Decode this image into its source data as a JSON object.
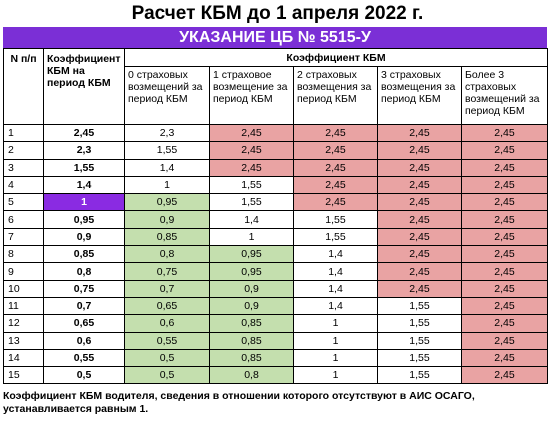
{
  "title": "Расчет КБМ до 1 апреля 2022 г.",
  "banner": "УКАЗАНИЕ ЦБ № 5515-У",
  "headers": {
    "num": "N п/п",
    "coef": "Коэффициент КБМ на период КБМ",
    "group": "Коэффициент КБМ",
    "columns": [
      "0 страховых возмещений за период КБМ",
      "1 страховое возмещение за период КБМ",
      "2 страховых возмещения за период КБМ",
      "3 страховых возмещения за период КБМ",
      "Более 3 страховых возмещений за период КБМ"
    ]
  },
  "rows": [
    {
      "n": "1",
      "coef": "2,45",
      "vals": [
        "2,3",
        "2,45",
        "2,45",
        "2,45",
        "2,45"
      ],
      "colors": [
        "",
        "red",
        "red",
        "red",
        "red"
      ]
    },
    {
      "n": "2",
      "coef": "2,3",
      "vals": [
        "1,55",
        "2,45",
        "2,45",
        "2,45",
        "2,45"
      ],
      "colors": [
        "",
        "red",
        "red",
        "red",
        "red"
      ]
    },
    {
      "n": "3",
      "coef": "1,55",
      "vals": [
        "1,4",
        "2,45",
        "2,45",
        "2,45",
        "2,45"
      ],
      "colors": [
        "",
        "red",
        "red",
        "red",
        "red"
      ]
    },
    {
      "n": "4",
      "coef": "1,4",
      "vals": [
        "1",
        "1,55",
        "2,45",
        "2,45",
        "2,45"
      ],
      "colors": [
        "",
        "",
        "red",
        "red",
        "red"
      ]
    },
    {
      "n": "5",
      "coef": "1",
      "vals": [
        "0,95",
        "1,55",
        "2,45",
        "2,45",
        "2,45"
      ],
      "colors": [
        "green",
        "",
        "red",
        "red",
        "red"
      ],
      "highlight": true
    },
    {
      "n": "6",
      "coef": "0,95",
      "vals": [
        "0,9",
        "1,4",
        "1,55",
        "2,45",
        "2,45"
      ],
      "colors": [
        "green",
        "",
        "",
        "red",
        "red"
      ]
    },
    {
      "n": "7",
      "coef": "0,9",
      "vals": [
        "0,85",
        "1",
        "1,55",
        "2,45",
        "2,45"
      ],
      "colors": [
        "green",
        "",
        "",
        "red",
        "red"
      ]
    },
    {
      "n": "8",
      "coef": "0,85",
      "vals": [
        "0,8",
        "0,95",
        "1,4",
        "2,45",
        "2,45"
      ],
      "colors": [
        "green",
        "green",
        "",
        "red",
        "red"
      ]
    },
    {
      "n": "9",
      "coef": "0,8",
      "vals": [
        "0,75",
        "0,95",
        "1,4",
        "2,45",
        "2,45"
      ],
      "colors": [
        "green",
        "green",
        "",
        "red",
        "red"
      ]
    },
    {
      "n": "10",
      "coef": "0,75",
      "vals": [
        "0,7",
        "0,9",
        "1,4",
        "2,45",
        "2,45"
      ],
      "colors": [
        "green",
        "green",
        "",
        "red",
        "red"
      ]
    },
    {
      "n": "11",
      "coef": "0,7",
      "vals": [
        "0,65",
        "0,9",
        "1,4",
        "1,55",
        "2,45"
      ],
      "colors": [
        "green",
        "green",
        "",
        "",
        "red"
      ]
    },
    {
      "n": "12",
      "coef": "0,65",
      "vals": [
        "0,6",
        "0,85",
        "1",
        "1,55",
        "2,45"
      ],
      "colors": [
        "green",
        "green",
        "",
        "",
        "red"
      ]
    },
    {
      "n": "13",
      "coef": "0,6",
      "vals": [
        "0,55",
        "0,85",
        "1",
        "1,55",
        "2,45"
      ],
      "colors": [
        "green",
        "green",
        "",
        "",
        "red"
      ]
    },
    {
      "n": "14",
      "coef": "0,55",
      "vals": [
        "0,5",
        "0,85",
        "1",
        "1,55",
        "2,45"
      ],
      "colors": [
        "green",
        "green",
        "",
        "",
        "red"
      ]
    },
    {
      "n": "15",
      "coef": "0,5",
      "vals": [
        "0,5",
        "0,8",
        "1",
        "1,55",
        "2,45"
      ],
      "colors": [
        "green",
        "green",
        "",
        "",
        "red"
      ]
    }
  ],
  "note": "Коэффициент КБМ водителя, сведения в отношении которого отсутствуют в АИС ОСАГО, устанавливается равным 1.",
  "colors": {
    "banner": "#7b2fd6",
    "green": "#c4dfae",
    "red": "#e9a3a3",
    "highlight": "#8a2be2"
  }
}
